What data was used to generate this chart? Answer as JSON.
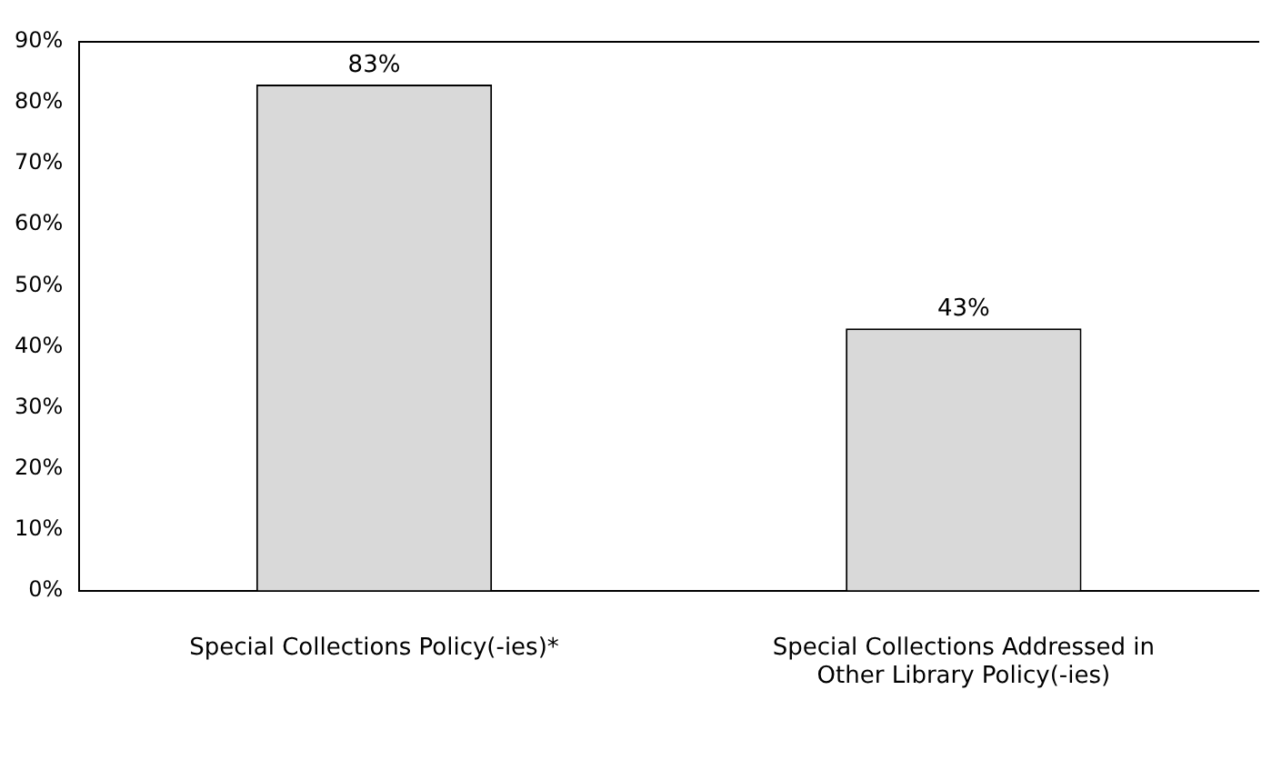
{
  "chart_data": {
    "type": "bar",
    "categories": [
      "Special Collections Policy(-ies)*",
      "Special Collections Addressed in Other Library Policy(-ies)"
    ],
    "values": [
      83,
      43
    ],
    "color": "#d9d9d9",
    "value_labels": [
      "83%",
      "43%"
    ],
    "ylim": [
      0,
      90
    ],
    "yticks": [
      {
        "value": 0,
        "label": "0%"
      },
      {
        "value": 10,
        "label": "10%"
      },
      {
        "value": 20,
        "label": "20%"
      },
      {
        "value": 30,
        "label": "30%"
      },
      {
        "value": 40,
        "label": "40%"
      },
      {
        "value": 50,
        "label": "50%"
      },
      {
        "value": 60,
        "label": "60%"
      },
      {
        "value": 70,
        "label": "70%"
      },
      {
        "value": 80,
        "label": "80%"
      },
      {
        "value": 90,
        "label": "90%"
      }
    ],
    "grid": false,
    "legend": false
  }
}
